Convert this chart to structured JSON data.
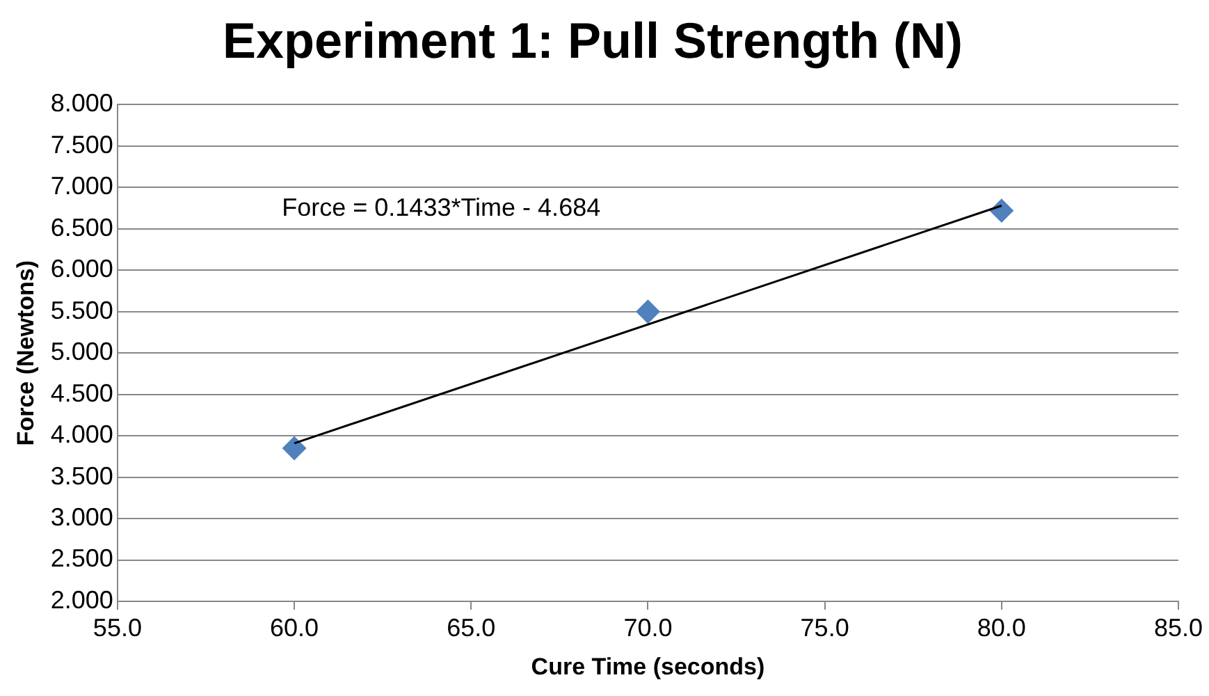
{
  "chart_data": {
    "type": "scatter",
    "title": "Experiment 1: Pull Strength (N)",
    "xlabel": "Cure Time (seconds)",
    "ylabel": "Force (Newtons)",
    "series": [
      {
        "color": "#4f81bd",
        "x": [
          60,
          70,
          80
        ],
        "values": [
          3.85,
          5.5,
          6.72
        ],
        "marker": "diamond"
      },
      {
        "type": "line",
        "color": "#000000",
        "x": [
          60,
          80
        ],
        "values": [
          3.91,
          6.78
        ],
        "marker": "none"
      }
    ],
    "annotations": [
      "Force = 0.1433*Time - 4.684"
    ],
    "xlim": [
      55,
      85
    ],
    "xticks": [
      {
        "value": 55,
        "label": "55.0"
      },
      {
        "value": 60,
        "label": "60.0"
      },
      {
        "value": 65,
        "label": "65.0"
      },
      {
        "value": 70,
        "label": "70.0"
      },
      {
        "value": 75,
        "label": "75.0"
      },
      {
        "value": 80,
        "label": "80.0"
      },
      {
        "value": 85,
        "label": "85.0"
      }
    ],
    "ylim": [
      2,
      8
    ],
    "yticks": [
      {
        "value": 2,
        "label": "2.000"
      },
      {
        "value": 2.5,
        "label": "2.500"
      },
      {
        "value": 3,
        "label": "3.000"
      },
      {
        "value": 3.5,
        "label": "3.500"
      },
      {
        "value": 4,
        "label": "4.000"
      },
      {
        "value": 4.5,
        "label": "4.500"
      },
      {
        "value": 5,
        "label": "5.000"
      },
      {
        "value": 5.5,
        "label": "5.500"
      },
      {
        "value": 6,
        "label": "6.000"
      },
      {
        "value": 6.5,
        "label": "6.500"
      },
      {
        "value": 7,
        "label": "7.000"
      },
      {
        "value": 7.5,
        "label": "7.500"
      },
      {
        "value": 8,
        "label": "8.000"
      }
    ],
    "grid": "y",
    "legend": false
  }
}
